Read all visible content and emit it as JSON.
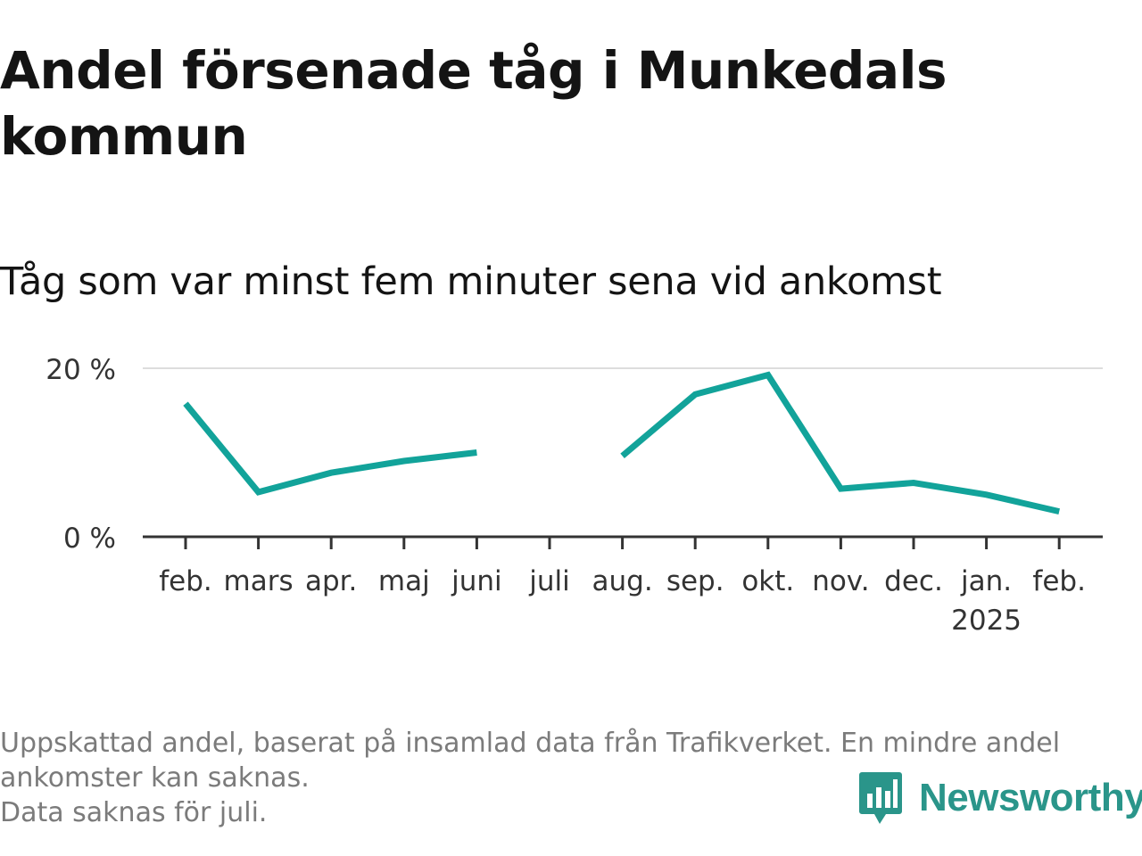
{
  "header": {
    "title": "Andel försenade tåg i Munkedals kommun",
    "subtitle": "Tåg som var minst fem minuter sena vid ankomst"
  },
  "footer": {
    "note_line1": "Uppskattad andel, baserat på insamlad data från Trafikverket. En mindre andel",
    "note_line2": "ankomster kan saknas.",
    "note_line3": "Data saknas för juli.",
    "brand": "Newsworthy",
    "brand_icon": "newsworthy-logo-icon",
    "brand_color": "#2a958a"
  },
  "chart_data": {
    "type": "line",
    "title": "Andel försenade tåg i Munkedals kommun",
    "subtitle": "Tåg som var minst fem minuter sena vid ankomst",
    "categories": [
      "feb.",
      "mars",
      "apr.",
      "maj",
      "juni",
      "juli",
      "aug.",
      "sep.",
      "okt.",
      "nov.",
      "dec.",
      "jan.",
      "feb."
    ],
    "year_labels": [
      "",
      "",
      "",
      "",
      "",
      "",
      "",
      "",
      "",
      "",
      "",
      "2025",
      ""
    ],
    "series": [
      {
        "values": [
          15.8,
          5.3,
          7.6,
          9.0,
          10.0,
          null,
          9.6,
          16.9,
          19.2,
          5.7,
          6.4,
          5.0,
          3.0
        ]
      }
    ],
    "y_ticks": [
      0,
      20
    ],
    "y_tick_labels": [
      "0 %",
      "20 %"
    ],
    "ylim": [
      0,
      20
    ],
    "xlabel": "",
    "ylabel": "",
    "grid": true,
    "legend": "none",
    "line_color": "#12a39a",
    "grid_color": "#dddddd",
    "axis_color": "#333333"
  }
}
